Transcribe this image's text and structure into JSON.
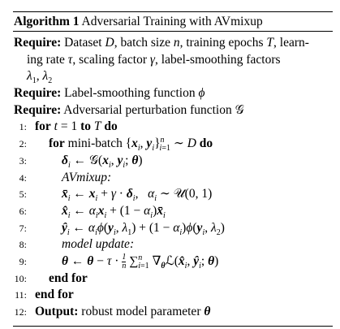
{
  "algorithm": {
    "number_label": "Algorithm 1",
    "title": "Adversarial Training with AVmixup",
    "require_kw": "Require:",
    "output_kw": "Output:",
    "require1_line1": "Dataset D, batch size n, training epochs T, learn-",
    "require1_line2": "ing rate τ, scaling factor γ, label-smoothing factors",
    "require1_line3": "λ1, λ2",
    "require2": "Label-smoothing function ϕ",
    "require3": "Adversarial perturbation function 𝒢",
    "lines": [
      {
        "num": "1:",
        "text": "for t = 1 to T do"
      },
      {
        "num": "2:",
        "text": "for mini-batch {xi, yi}ⁿi=1 ∼ D do"
      },
      {
        "num": "3:",
        "text": "δi ← 𝒢(xi, yi; θ)"
      },
      {
        "num": "4:",
        "text": "AVmixup:"
      },
      {
        "num": "5:",
        "text": "x̄i ← xi + γ · δi,   αi ∼ 𝒰(0, 1)"
      },
      {
        "num": "6:",
        "text": "x̂i ← αixi + (1 − αi)x̄i"
      },
      {
        "num": "7:",
        "text": "ŷi ← αiϕ(yi, λ1) + (1 − αi)ϕ(yi, λ2)"
      },
      {
        "num": "8:",
        "text": "model update:"
      },
      {
        "num": "9:",
        "text": "θ ← θ − τ · 1/n ∑ⁿi=1 ∇θℒ(x̂i, ŷi; θ)"
      },
      {
        "num": "10:",
        "text": "end for"
      },
      {
        "num": "11:",
        "text": "end for"
      },
      {
        "num": "12:",
        "text": "Output: robust model parameter θ"
      }
    ]
  }
}
